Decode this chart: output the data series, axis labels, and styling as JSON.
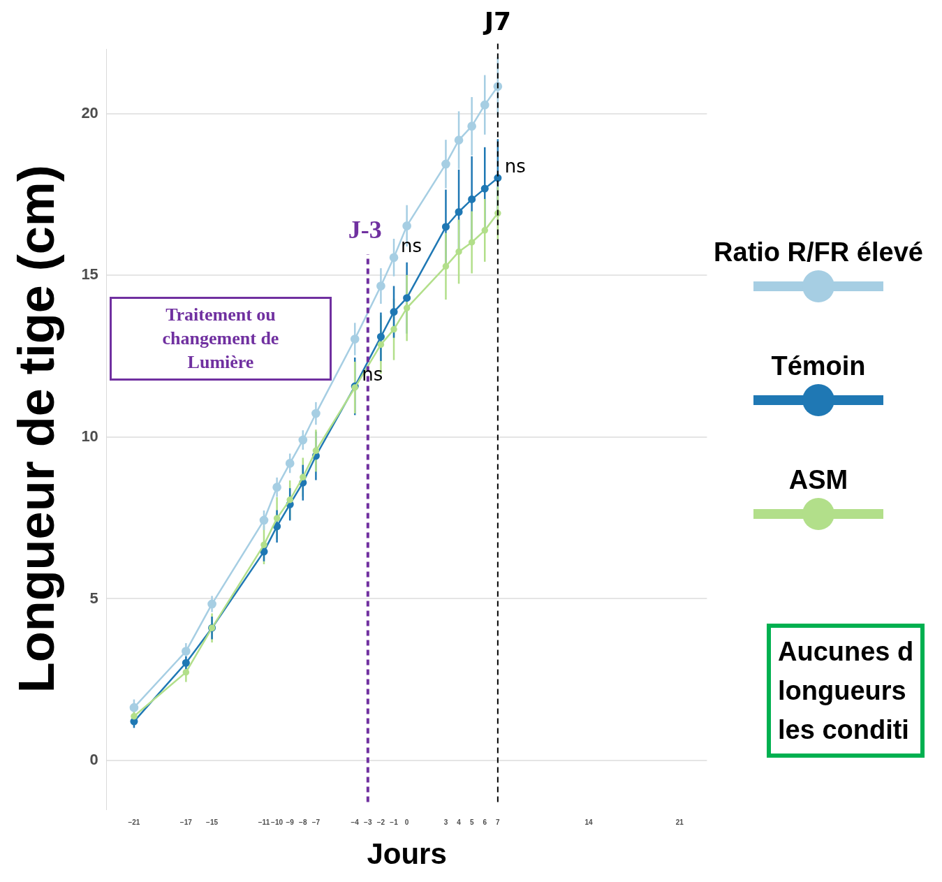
{
  "chart_data": {
    "type": "line",
    "xlabel": "Jours",
    "ylabel": "Longueur de tige (cm)",
    "x": [
      -21,
      -17,
      -15,
      -11,
      -10,
      -9,
      -8,
      -7,
      -4,
      -2,
      -1,
      0,
      3,
      4,
      5,
      6,
      7
    ],
    "series": [
      {
        "name": "Ratio R/FR élevé",
        "color": "#a6cee3",
        "values": [
          1.64,
          3.38,
          4.84,
          7.43,
          8.45,
          9.19,
          9.91,
          10.73,
          13.03,
          14.67,
          15.55,
          16.53,
          18.44,
          19.18,
          19.61,
          20.27,
          20.84
        ],
        "errors": [
          0.25,
          0.25,
          0.25,
          0.3,
          0.3,
          0.3,
          0.3,
          0.35,
          0.5,
          0.55,
          0.58,
          0.64,
          0.75,
          0.89,
          0.9,
          0.92,
          0.9
        ]
      },
      {
        "name": "Témoin",
        "color": "#1f78b4",
        "values": [
          1.21,
          3.02,
          4.1,
          6.46,
          7.24,
          7.92,
          8.59,
          9.42,
          11.57,
          13.1,
          13.87,
          14.3,
          16.5,
          16.96,
          17.35,
          17.68,
          18.01
        ],
        "errors": [
          0.2,
          0.2,
          0.35,
          0.3,
          0.5,
          0.5,
          0.55,
          0.75,
          0.89,
          0.75,
          0.8,
          1.1,
          1.15,
          1.31,
          1.33,
          1.28,
          1.2
        ]
      },
      {
        "name": "ASM",
        "color": "#b2df8a",
        "values": [
          1.37,
          2.73,
          4.1,
          6.67,
          7.49,
          8.06,
          8.76,
          9.58,
          11.53,
          12.86,
          13.33,
          13.99,
          15.28,
          15.73,
          16.02,
          16.39,
          16.92
        ],
        "errors": [
          0.15,
          0.3,
          0.45,
          0.6,
          0.65,
          0.6,
          0.6,
          0.65,
          0.8,
          0.9,
          0.95,
          1.02,
          1.03,
          0.99,
          0.96,
          0.97,
          0.82
        ]
      }
    ],
    "xlim": [
      -23.1,
      23.1
    ],
    "xticks": [
      -21,
      -17,
      -15,
      -11,
      -10,
      -9,
      -8,
      -7,
      -4,
      -3,
      -2,
      -1,
      0,
      3,
      4,
      5,
      6,
      7,
      14,
      21
    ],
    "ylim": [
      -1.5,
      22
    ],
    "yticks": [
      0,
      5,
      10,
      15,
      20
    ],
    "grid": "y",
    "legend": "right",
    "marker": "circle",
    "line_style": "solid",
    "ref_lines": [
      {
        "axis": "x",
        "value": -3,
        "label": "J-3",
        "color": "#7030a0",
        "line_style": "dashed"
      },
      {
        "axis": "x",
        "value": 7,
        "label": "J7",
        "color": "#000000",
        "line_style": "dashed"
      }
    ],
    "annotations": [
      "Traitement ou\nchangement de\nLumière",
      {
        "text": "ns",
        "x": -4,
        "y": 11.57
      },
      {
        "text": "ns",
        "x": -1,
        "y": 15.55
      },
      {
        "text": "ns",
        "x": 7,
        "y": 18.01
      },
      "Aucunes d\nlongueurs\nles conditi"
    ]
  }
}
